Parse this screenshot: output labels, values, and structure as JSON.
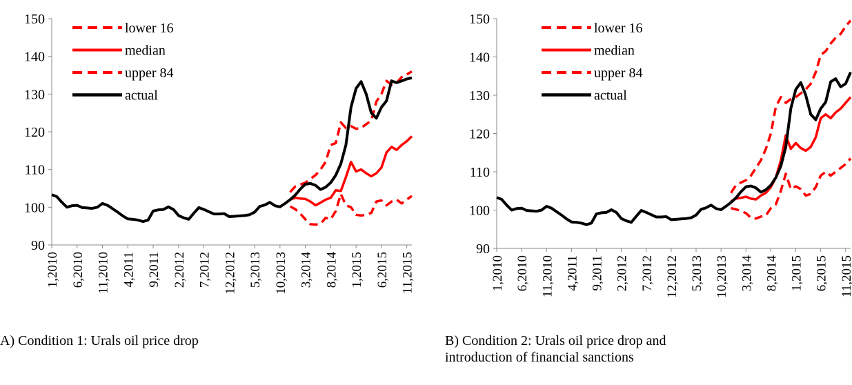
{
  "chart_data": [
    {
      "type": "line",
      "caption": "A) Condition 1: Urals oil price drop",
      "categories": [
        "1,2010",
        null,
        null,
        null,
        null,
        "6,2010",
        null,
        null,
        null,
        null,
        "11,2010",
        null,
        null,
        null,
        null,
        "4,2011",
        null,
        null,
        null,
        null,
        "9,2011",
        null,
        null,
        null,
        null,
        "2,2012",
        null,
        null,
        null,
        null,
        "7,2012",
        null,
        null,
        null,
        null,
        "12,2012",
        null,
        null,
        null,
        null,
        "5,2013",
        null,
        null,
        null,
        null,
        "10,2013",
        null,
        null,
        null,
        null,
        "3,2014",
        null,
        null,
        null,
        null,
        "8,2014",
        null,
        null,
        null,
        null,
        "1,2015",
        null,
        null,
        null,
        null,
        "6,2015",
        null,
        null,
        null,
        null,
        "11,2015",
        null
      ],
      "ylim": [
        90,
        150
      ],
      "yticks": [
        90,
        100,
        110,
        120,
        130,
        140,
        150
      ],
      "grid": false,
      "legend": "upper-left",
      "series": [
        {
          "name": "lower 16",
          "color": "#ff0000",
          "dashed": true,
          "values": [
            null,
            null,
            null,
            null,
            null,
            null,
            null,
            null,
            null,
            null,
            null,
            null,
            null,
            null,
            null,
            null,
            null,
            null,
            null,
            null,
            null,
            null,
            null,
            null,
            null,
            null,
            null,
            null,
            null,
            null,
            null,
            null,
            null,
            null,
            null,
            null,
            null,
            null,
            null,
            null,
            null,
            null,
            null,
            null,
            null,
            null,
            null,
            100.2,
            99.5,
            98.3,
            96.8,
            95.5,
            95.4,
            95.6,
            97.2,
            96.8,
            99.0,
            103.5,
            100.5,
            100.0,
            98.0,
            97.8,
            98.0,
            98.5,
            101.5,
            101.8,
            100.5,
            101.5,
            102.0,
            101.0,
            102.0,
            103.0
          ]
        },
        {
          "name": "median",
          "color": "#ff0000",
          "dashed": false,
          "values": [
            null,
            null,
            null,
            null,
            null,
            null,
            null,
            null,
            null,
            null,
            null,
            null,
            null,
            null,
            null,
            null,
            null,
            null,
            null,
            null,
            null,
            null,
            null,
            null,
            null,
            null,
            null,
            null,
            null,
            null,
            null,
            null,
            null,
            null,
            null,
            null,
            null,
            null,
            null,
            null,
            null,
            null,
            null,
            null,
            null,
            null,
            null,
            102.0,
            102.5,
            102.3,
            102.2,
            101.5,
            100.5,
            101.2,
            102.0,
            102.5,
            104.5,
            104.3,
            108.0,
            112.0,
            109.5,
            110.0,
            109.0,
            108.2,
            109.0,
            110.5,
            114.5,
            116.0,
            115.2,
            116.5,
            117.5,
            118.8
          ]
        },
        {
          "name": "upper 84",
          "color": "#ff0000",
          "dashed": true,
          "values": [
            null,
            null,
            null,
            null,
            null,
            null,
            null,
            null,
            null,
            null,
            null,
            null,
            null,
            null,
            null,
            null,
            null,
            null,
            null,
            null,
            null,
            null,
            null,
            null,
            null,
            null,
            null,
            null,
            null,
            null,
            null,
            null,
            null,
            null,
            null,
            null,
            null,
            null,
            null,
            null,
            null,
            null,
            null,
            null,
            null,
            null,
            null,
            104.0,
            105.5,
            106.0,
            106.5,
            107.5,
            108.5,
            110.0,
            112.0,
            116.5,
            117.0,
            122.5,
            121.0,
            121.5,
            120.8,
            121.0,
            122.0,
            123.0,
            128.0,
            130.0,
            133.5,
            132.5,
            133.0,
            134.5,
            135.2,
            136.0
          ]
        },
        {
          "name": "actual",
          "color": "#000000",
          "dashed": false,
          "values": [
            103.3,
            102.8,
            101.3,
            100.0,
            100.4,
            100.5,
            99.9,
            99.8,
            99.7,
            100.0,
            101.0,
            100.5,
            99.6,
            98.7,
            97.7,
            96.9,
            96.8,
            96.6,
            96.2,
            96.6,
            99.0,
            99.3,
            99.4,
            100.1,
            99.4,
            97.8,
            97.2,
            96.8,
            98.4,
            99.9,
            99.4,
            98.8,
            98.2,
            98.2,
            98.3,
            97.5,
            97.6,
            97.7,
            97.8,
            98.0,
            98.7,
            100.2,
            100.6,
            101.3,
            100.4,
            100.1,
            101.0,
            102.0,
            103.2,
            104.8,
            106.1,
            106.3,
            105.8,
            104.7,
            105.3,
            106.5,
            108.5,
            111.5,
            116.5,
            126.5,
            131.5,
            133.3,
            130.0,
            125.0,
            123.6,
            126.5,
            128.2,
            133.5,
            133.0,
            133.5,
            134.0,
            134.3
          ]
        }
      ]
    },
    {
      "type": "line",
      "caption": "B) Condition 2: Urals oil price drop and introduction of financial sanctions",
      "categories": [
        "1,2010",
        null,
        null,
        null,
        null,
        "6,2010",
        null,
        null,
        null,
        null,
        "11,2010",
        null,
        null,
        null,
        null,
        "4,2011",
        null,
        null,
        null,
        null,
        "9,2011",
        null,
        null,
        null,
        null,
        "2,2012",
        null,
        null,
        null,
        null,
        "7,2012",
        null,
        null,
        null,
        null,
        "12,2012",
        null,
        null,
        null,
        null,
        "5,2013",
        null,
        null,
        null,
        null,
        "10,2013",
        null,
        null,
        null,
        null,
        "3,2014",
        null,
        null,
        null,
        null,
        "8,2014",
        null,
        null,
        null,
        null,
        "1,2015",
        null,
        null,
        null,
        null,
        "6,2015",
        null,
        null,
        null,
        null,
        "11,2015",
        null
      ],
      "ylim": [
        90,
        150
      ],
      "yticks": [
        90,
        100,
        110,
        120,
        130,
        140,
        150
      ],
      "grid": false,
      "legend": "upper-left",
      "series": [
        {
          "name": "lower 16",
          "color": "#ff0000",
          "dashed": true,
          "values": [
            null,
            null,
            null,
            null,
            null,
            null,
            null,
            null,
            null,
            null,
            null,
            null,
            null,
            null,
            null,
            null,
            null,
            null,
            null,
            null,
            null,
            null,
            null,
            null,
            null,
            null,
            null,
            null,
            null,
            null,
            null,
            null,
            null,
            null,
            null,
            null,
            null,
            null,
            null,
            null,
            null,
            null,
            null,
            null,
            null,
            null,
            null,
            100.5,
            100.2,
            99.8,
            99.2,
            98.0,
            97.8,
            98.3,
            98.6,
            100.5,
            101.5,
            105.0,
            109.5,
            105.5,
            106.2,
            105.5,
            103.8,
            104.2,
            106.0,
            109.0,
            110.0,
            109.0,
            110.0,
            111.0,
            112.0,
            113.5
          ]
        },
        {
          "name": "median",
          "color": "#ff0000",
          "dashed": false,
          "values": [
            null,
            null,
            null,
            null,
            null,
            null,
            null,
            null,
            null,
            null,
            null,
            null,
            null,
            null,
            null,
            null,
            null,
            null,
            null,
            null,
            null,
            null,
            null,
            null,
            null,
            null,
            null,
            null,
            null,
            null,
            null,
            null,
            null,
            null,
            null,
            null,
            null,
            null,
            null,
            null,
            null,
            null,
            null,
            null,
            null,
            null,
            null,
            102.3,
            103.0,
            103.2,
            103.5,
            103.0,
            102.8,
            103.8,
            104.5,
            106.0,
            108.5,
            113.0,
            119.5,
            116.0,
            117.5,
            116.2,
            115.5,
            116.5,
            119.0,
            124.0,
            125.0,
            124.0,
            125.5,
            126.5,
            128.0,
            129.5
          ]
        },
        {
          "name": "upper 84",
          "color": "#ff0000",
          "dashed": true,
          "values": [
            null,
            null,
            null,
            null,
            null,
            null,
            null,
            null,
            null,
            null,
            null,
            null,
            null,
            null,
            null,
            null,
            null,
            null,
            null,
            null,
            null,
            null,
            null,
            null,
            null,
            null,
            null,
            null,
            null,
            null,
            null,
            null,
            null,
            null,
            null,
            null,
            null,
            null,
            null,
            null,
            null,
            null,
            null,
            null,
            null,
            null,
            null,
            104.5,
            106.5,
            107.2,
            107.8,
            109.0,
            111.0,
            113.0,
            116.0,
            120.0,
            127.0,
            129.5,
            128.0,
            129.0,
            129.5,
            130.5,
            131.5,
            133.0,
            136.0,
            140.5,
            141.5,
            143.5,
            145.0,
            146.0,
            148.0,
            149.5
          ]
        },
        {
          "name": "actual",
          "color": "#000000",
          "dashed": false,
          "values": [
            103.3,
            102.8,
            101.3,
            100.0,
            100.4,
            100.5,
            99.9,
            99.8,
            99.7,
            100.0,
            101.0,
            100.5,
            99.6,
            98.7,
            97.7,
            96.9,
            96.8,
            96.6,
            96.2,
            96.6,
            99.0,
            99.3,
            99.4,
            100.1,
            99.4,
            97.8,
            97.2,
            96.8,
            98.4,
            99.9,
            99.4,
            98.8,
            98.2,
            98.2,
            98.3,
            97.5,
            97.6,
            97.7,
            97.8,
            98.0,
            98.7,
            100.2,
            100.6,
            101.3,
            100.4,
            100.1,
            101.0,
            102.0,
            103.2,
            104.8,
            106.1,
            106.3,
            105.8,
            104.7,
            105.3,
            106.5,
            108.5,
            111.5,
            116.5,
            126.5,
            131.5,
            133.3,
            130.0,
            125.0,
            123.6,
            126.5,
            128.2,
            133.5,
            134.3,
            132.2,
            133.0,
            136.0
          ]
        }
      ]
    }
  ]
}
